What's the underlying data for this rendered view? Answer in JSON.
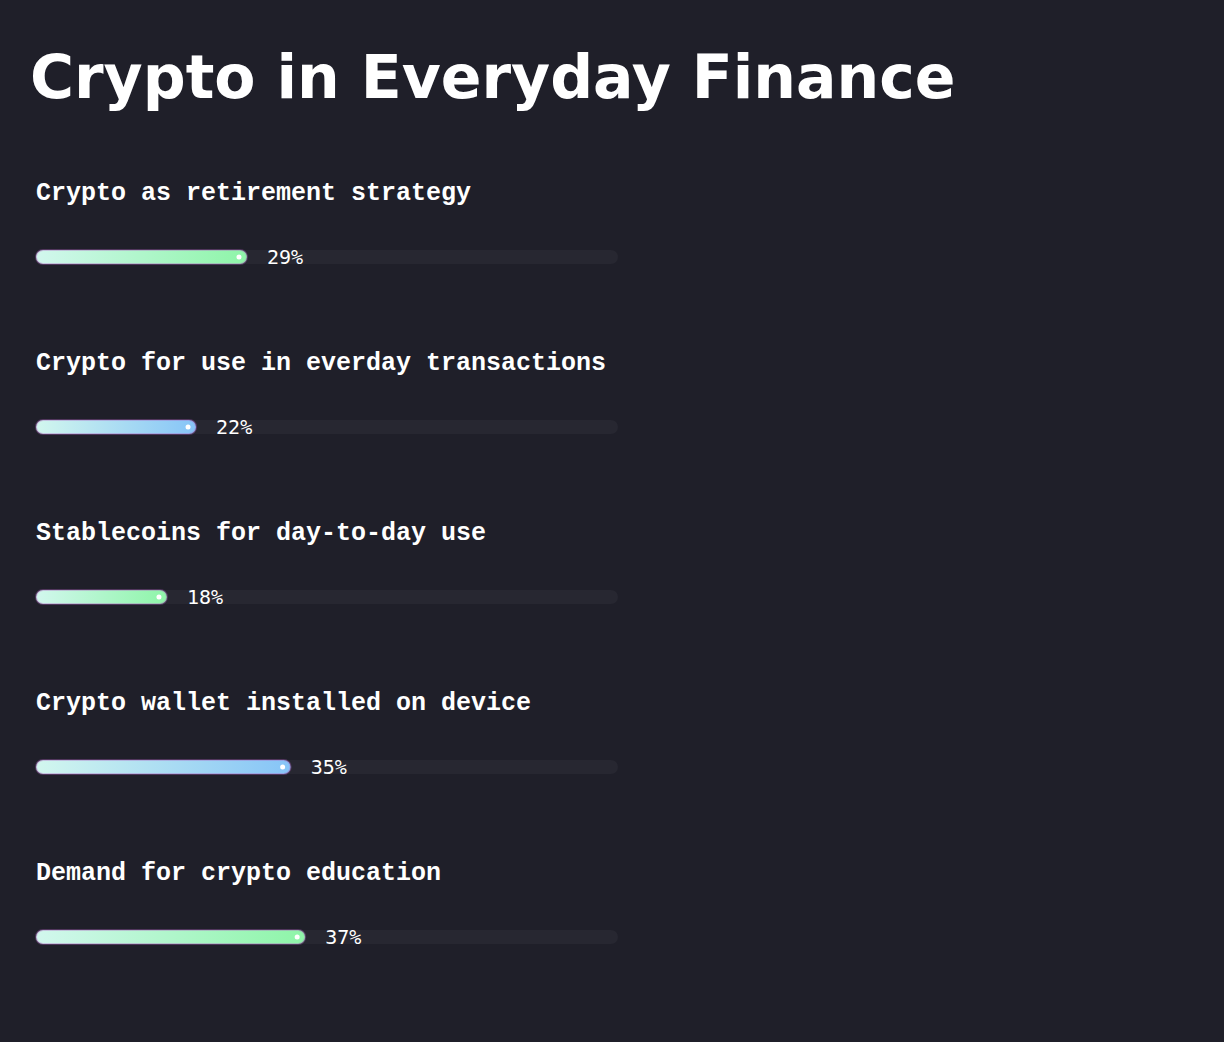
{
  "chart_data": {
    "type": "bar",
    "orientation": "horizontal",
    "title": "Crypto in Everyday Finance",
    "categories": [
      "Crypto as retirement strategy",
      "Crypto for use in everday transactions",
      "Stablecoins for day-to-day use",
      "Crypto wallet installed on device",
      "Demand for crypto education"
    ],
    "values": [
      29,
      22,
      18,
      35,
      37
    ],
    "value_labels": [
      "29%",
      "22%",
      "18%",
      "35%",
      "37%"
    ],
    "data_labels": true,
    "tick_labels": false,
    "xlim": [
      0,
      80
    ],
    "colors": [
      "#8ef5a8",
      "#86c4f7",
      "#8ef5a8",
      "#86c4f7",
      "#8ef5a8"
    ]
  }
}
